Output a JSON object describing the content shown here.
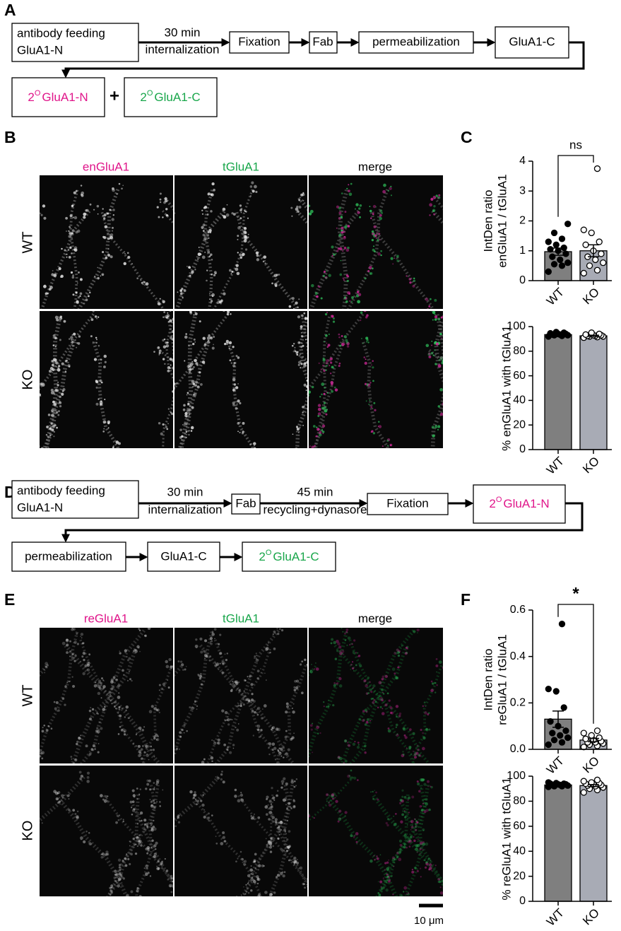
{
  "panel_a": {
    "label": "A",
    "start": [
      "antibody feeding",
      "GluA1-N"
    ],
    "time": "30 min",
    "step": "internalization",
    "boxes": [
      "Fixation",
      "Fab",
      "permeabilization",
      "GluA1-C"
    ],
    "secondary_prefix": "2",
    "secondary_sup": "O",
    "result_n": "GluA1-N",
    "plus": "+",
    "result_c": "GluA1-C"
  },
  "panel_b": {
    "label": "B",
    "columns": [
      "enGluA1",
      "tGluA1",
      "merge"
    ],
    "rows": [
      "WT",
      "KO"
    ]
  },
  "panel_c": {
    "label": "C"
  },
  "panel_d": {
    "label": "D",
    "start": [
      "antibody feeding",
      "GluA1-N"
    ],
    "time1": "30 min",
    "step1": "internalization",
    "box_fab": "Fab",
    "time2": "45 min",
    "step2": "recycling+dynasore",
    "box_fix": "Fixation",
    "secondary_prefix": "2",
    "secondary_sup": "O",
    "result_n": "GluA1-N",
    "box_perm": "permeabilization",
    "box_c": "GluA1-C",
    "result_c": "GluA1-C"
  },
  "panel_e": {
    "label": "E",
    "columns": [
      "reGluA1",
      "tGluA1",
      "merge"
    ],
    "rows": [
      "WT",
      "KO"
    ],
    "scale_bar": "10 μm"
  },
  "panel_f": {
    "label": "F"
  },
  "chart_data": [
    {
      "type": "bar",
      "ylabel": [
        "IntDen ratio",
        "enGluA1 / tGluA1"
      ],
      "categories": [
        "WT",
        "KO"
      ],
      "values": [
        0.97,
        1.0
      ],
      "errors": [
        0.12,
        0.2
      ],
      "colors": [
        "#7f7f7f",
        "#a8abb5"
      ],
      "point_fill": [
        "#000000",
        "#ffffff"
      ],
      "points": [
        [
          0.3,
          0.5,
          0.55,
          0.6,
          0.7,
          0.8,
          0.9,
          1.0,
          1.05,
          1.1,
          1.2,
          1.3,
          1.4,
          1.6,
          1.9
        ],
        [
          0.25,
          0.35,
          0.5,
          0.6,
          0.7,
          0.8,
          0.9,
          1.0,
          1.2,
          1.3,
          1.6,
          1.7,
          3.75
        ]
      ],
      "ylim": [
        0,
        4
      ],
      "yticks": [
        0,
        1,
        2,
        3,
        4
      ],
      "significance": "ns"
    },
    {
      "type": "bar",
      "ylabel": [
        "% enGluA1 with tGluA1"
      ],
      "categories": [
        "WT",
        "KO"
      ],
      "values": [
        93.5,
        92.5
      ],
      "errors": [
        0.4,
        0.5
      ],
      "colors": [
        "#7f7f7f",
        "#a8abb5"
      ],
      "point_fill": [
        "#000000",
        "#ffffff"
      ],
      "points": [
        [
          92,
          92.5,
          93,
          93,
          93.5,
          93.5,
          94,
          94,
          94.5,
          95,
          95.5
        ],
        [
          91,
          91.5,
          92,
          92,
          92.5,
          92.5,
          93,
          93,
          93.5,
          94,
          95
        ]
      ],
      "ylim": [
        0,
        100
      ],
      "yticks": [
        0,
        20,
        40,
        60,
        80,
        100
      ]
    },
    {
      "type": "bar",
      "ylabel": [
        "IntDen ratio",
        "reGluA1 / tGluA1"
      ],
      "categories": [
        "WT",
        "KO"
      ],
      "values": [
        0.13,
        0.04
      ],
      "errors": [
        0.035,
        0.007
      ],
      "colors": [
        "#7f7f7f",
        "#a8abb5"
      ],
      "point_fill": [
        "#000000",
        "#ffffff"
      ],
      "points": [
        [
          0.02,
          0.03,
          0.04,
          0.05,
          0.06,
          0.07,
          0.08,
          0.1,
          0.12,
          0.18,
          0.25,
          0.26,
          0.54
        ],
        [
          0.01,
          0.015,
          0.02,
          0.025,
          0.03,
          0.03,
          0.035,
          0.04,
          0.045,
          0.05,
          0.06,
          0.07,
          0.08
        ]
      ],
      "ylim": [
        0,
        0.6
      ],
      "yticks": [
        {
          "value": 0,
          "label": "0.0"
        },
        0.2,
        0.4,
        0.6
      ],
      "significance": "*"
    },
    {
      "type": "bar",
      "ylabel": [
        "% reGluA1 with tGluA1"
      ],
      "categories": [
        "WT",
        "KO"
      ],
      "values": [
        93,
        92.5
      ],
      "errors": [
        0.5,
        0.8
      ],
      "colors": [
        "#7f7f7f",
        "#a8abb5"
      ],
      "point_fill": [
        "#000000",
        "#ffffff"
      ],
      "points": [
        [
          91.5,
          92,
          92,
          92.5,
          93,
          93,
          93.5,
          93.5,
          94,
          94,
          94.5,
          95
        ],
        [
          87,
          89,
          90,
          91,
          92,
          92.5,
          93,
          93.5,
          94,
          94.5,
          95,
          96,
          97
        ]
      ],
      "ylim": [
        0,
        100
      ],
      "yticks": [
        0,
        20,
        40,
        60,
        80,
        100
      ]
    }
  ]
}
